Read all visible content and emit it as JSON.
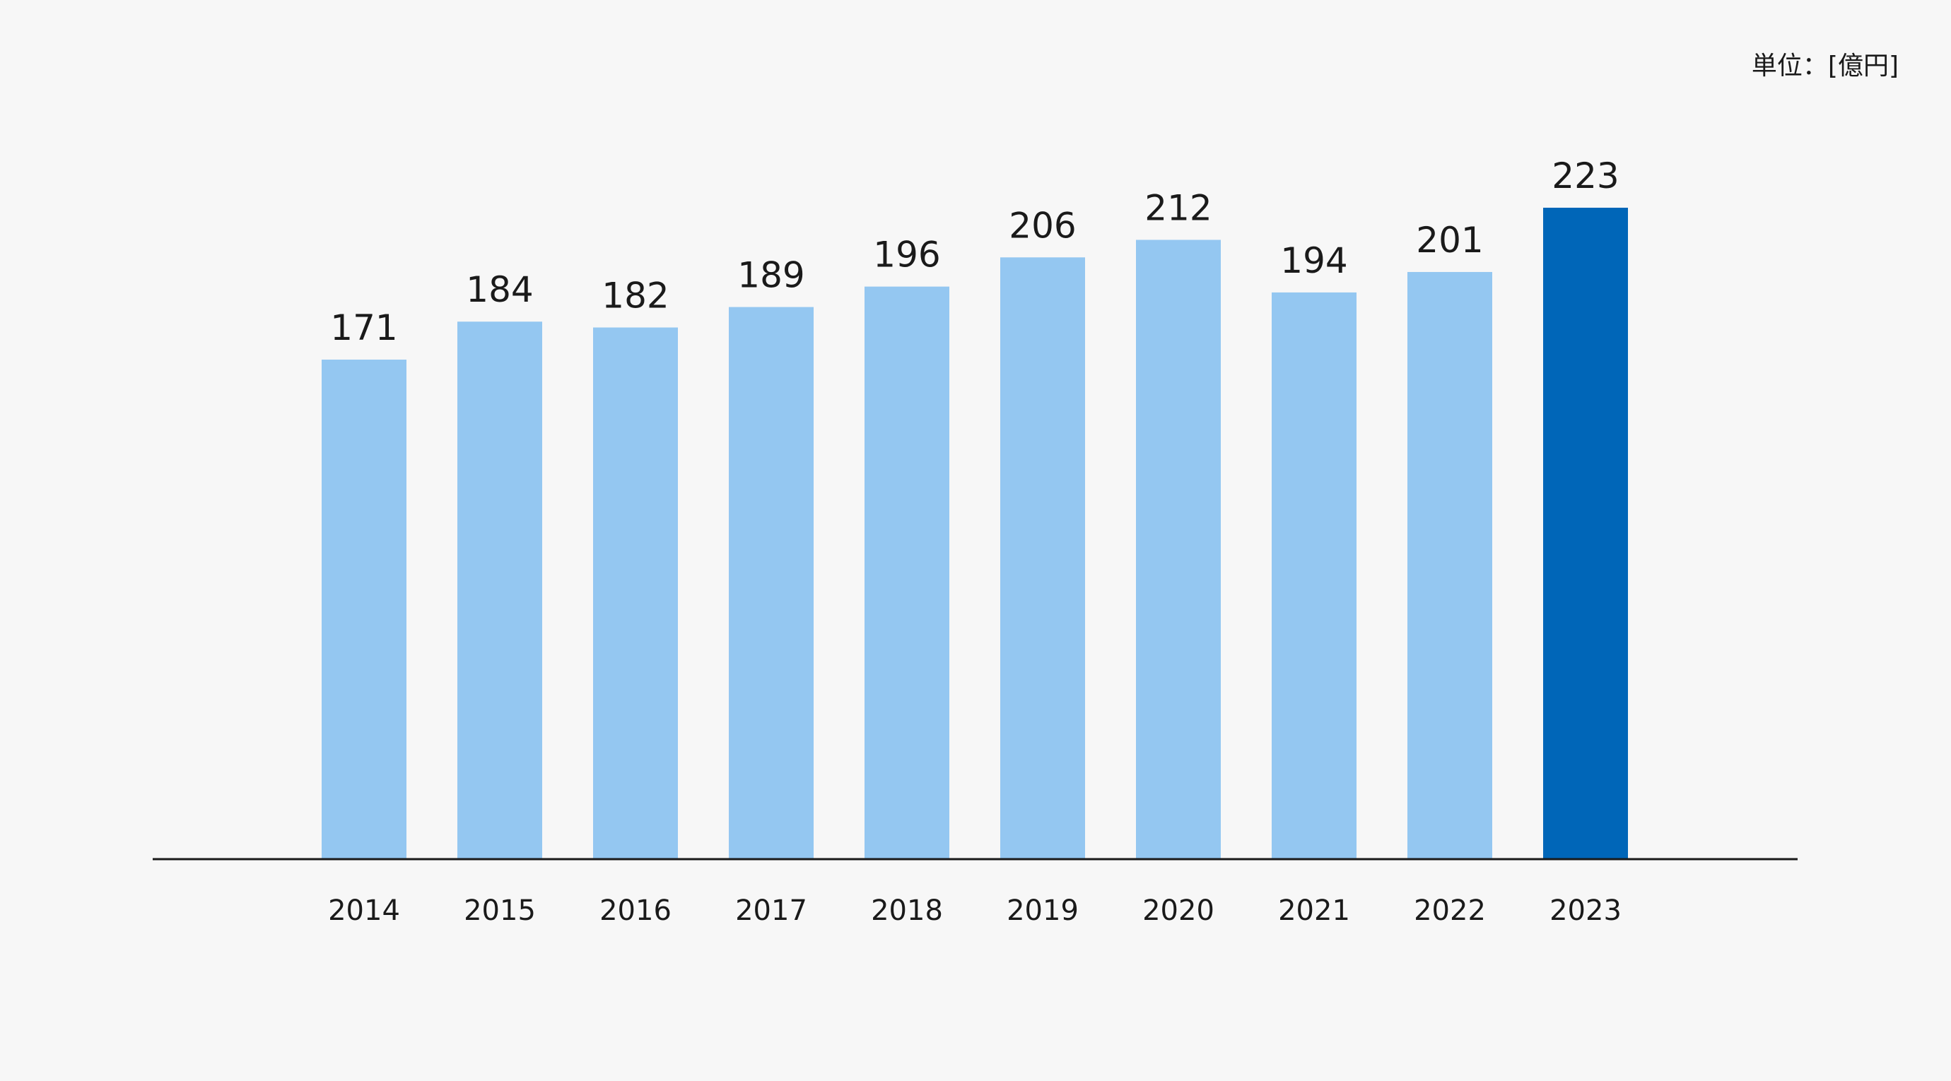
{
  "unit_label": "単位：[億円]",
  "colors": {
    "background": "#f7f7f7",
    "bar": "#94c7f1",
    "highlight_bar": "#0066b8",
    "axis": "#1a1a1a",
    "text": "#1a1a1a"
  },
  "chart_data": {
    "type": "bar",
    "categories": [
      "2014",
      "2015",
      "2016",
      "2017",
      "2018",
      "2019",
      "2020",
      "2021",
      "2022",
      "2023"
    ],
    "values": [
      171,
      184,
      182,
      189,
      196,
      206,
      212,
      194,
      201,
      223
    ],
    "highlight_category": "2023",
    "title": "",
    "xlabel": "",
    "ylabel": "",
    "ylim": [
      0,
      223
    ],
    "grid": false,
    "data_labels": true
  }
}
